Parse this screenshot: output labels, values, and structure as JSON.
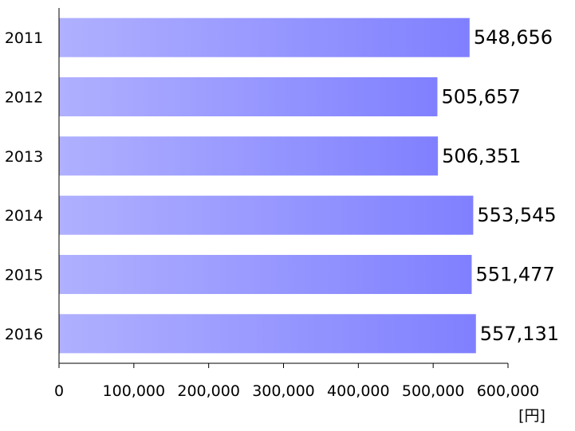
{
  "chart_data": {
    "type": "bar",
    "orientation": "horizontal",
    "categories": [
      "2011",
      "2012",
      "2013",
      "2014",
      "2015",
      "2016"
    ],
    "values": [
      548656,
      505657,
      506351,
      553545,
      551477,
      557131
    ],
    "value_labels": [
      "548,656",
      "505,657",
      "506,351",
      "553,545",
      "551,477",
      "557,131"
    ],
    "xlim": [
      0,
      600000
    ],
    "x_ticks": [
      0,
      100000,
      200000,
      300000,
      400000,
      500000,
      600000
    ],
    "x_tick_labels": [
      "0",
      "100,000",
      "200,000",
      "300,000",
      "400,000",
      "500,000",
      "600,000"
    ],
    "unit_label": "[円]",
    "grid": false,
    "legend": "none",
    "bar_color_start": "#b0b0ff",
    "bar_color_end": "#8080ff"
  }
}
